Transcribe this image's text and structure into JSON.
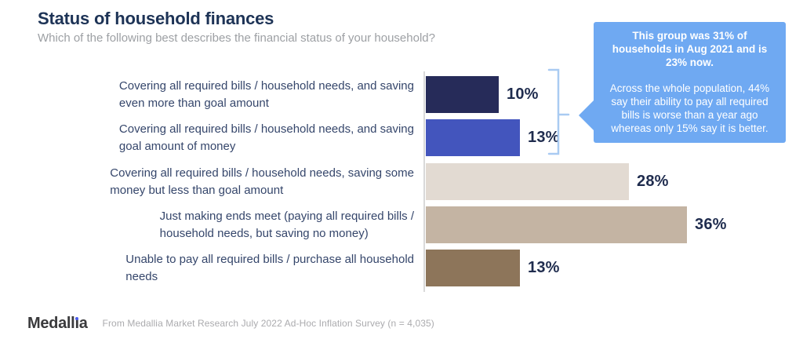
{
  "header": {
    "title": "Status of household finances",
    "subtitle": "Which of the following best describes the financial status of your household?"
  },
  "chart_data": {
    "type": "bar",
    "orientation": "horizontal",
    "unit": "%",
    "xlim": [
      0,
      40
    ],
    "grid": false,
    "categories": [
      "Covering all required bills / household needs, and saving\neven more than goal amount",
      "Covering all required bills / household needs, and saving\ngoal amount of money",
      "Covering all required bills / household needs, saving some\nmoney but less than goal amount",
      "Just making ends meet (paying all required bills /\nhousehold needs, but saving no money)",
      "Unable to pay all required bills / purchase all household\nneeds"
    ],
    "values": [
      10,
      13,
      28,
      36,
      13
    ],
    "value_labels": [
      "10%",
      "13%",
      "28%",
      "36%",
      "13%"
    ],
    "bar_colors": [
      "#262b59",
      "#4355bd",
      "#e2dad2",
      "#c4b4a3",
      "#8d755a"
    ],
    "axis_color": "#d9d9d9"
  },
  "annotation": {
    "headline": "This group was 31% of\nhouseholds in Aug 2021 and is\n23% now.",
    "body": "Across the whole population, 44%\nsay their ability to pay all required\nbills is worse than a year ago\nwhereas only 15% say it is better.",
    "bg_color": "#6fa9f2",
    "text_color": "#ffffff",
    "bracket_color": "#a9cbf2",
    "bracket_rows": [
      0,
      1
    ]
  },
  "footer": {
    "logo": {
      "part1": "Medall",
      "part2": "ı",
      "part3": "a",
      "dot_color": "#4b5ced"
    },
    "source": "From Medallia Market Research July 2022 Ad-Hoc Inflation Survey (n = 4,035)"
  }
}
